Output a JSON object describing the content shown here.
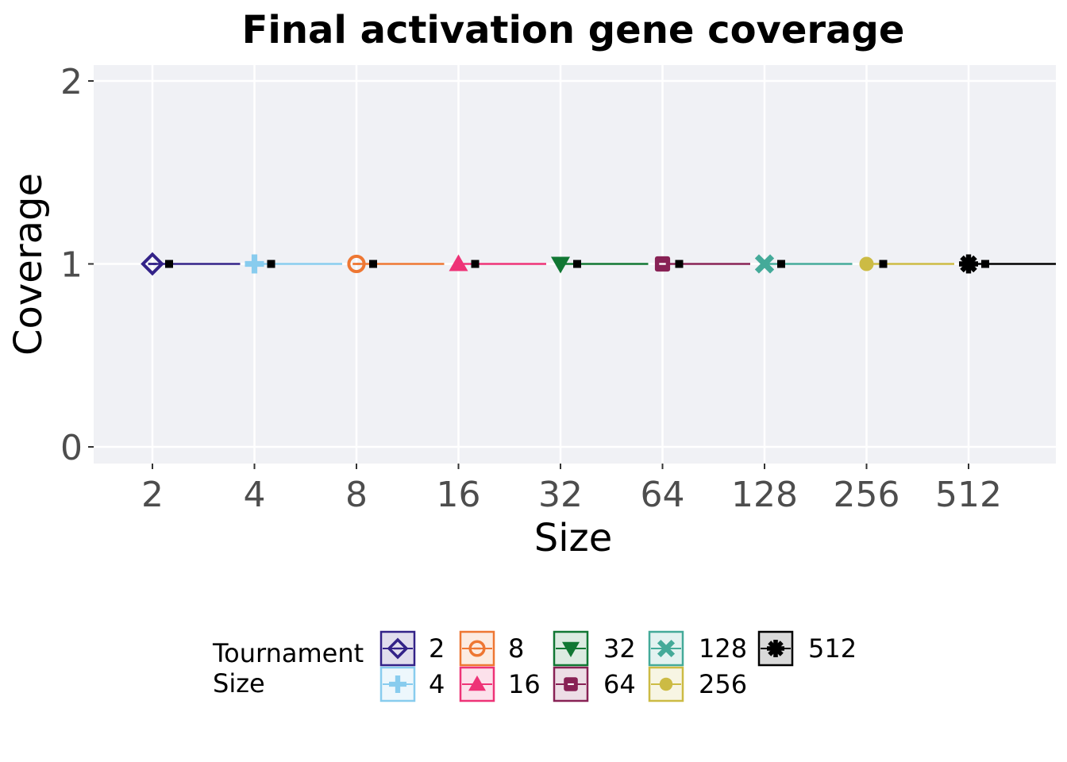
{
  "chart_data": {
    "type": "scatter",
    "title": "Final activation gene coverage",
    "xlabel": "Size",
    "ylabel": "Coverage",
    "categories": [
      "2",
      "4",
      "8",
      "16",
      "32",
      "64",
      "128",
      "256",
      "512"
    ],
    "y_ticks": [
      "0",
      "1",
      "2"
    ],
    "ylim": [
      0,
      2
    ],
    "grid": true,
    "legend": {
      "title_lines": [
        "Tournament",
        "Size"
      ],
      "placement": "bottom"
    },
    "series": [
      {
        "name": "2",
        "color": "#332288",
        "shape": "diamond-open",
        "values": [
          1
        ]
      },
      {
        "name": "4",
        "color": "#88CCEE",
        "shape": "plus",
        "values": [
          1
        ]
      },
      {
        "name": "8",
        "color": "#EE7733",
        "shape": "circle-open",
        "values": [
          1
        ]
      },
      {
        "name": "16",
        "color": "#EE3377",
        "shape": "triangle-up",
        "values": [
          1
        ]
      },
      {
        "name": "32",
        "color": "#117733",
        "shape": "triangle-down",
        "values": [
          1
        ]
      },
      {
        "name": "64",
        "color": "#882255",
        "shape": "square-open",
        "values": [
          1
        ]
      },
      {
        "name": "128",
        "color": "#44AA99",
        "shape": "cross",
        "values": [
          1
        ]
      },
      {
        "name": "256",
        "color": "#CCBB44",
        "shape": "circle",
        "values": [
          1
        ]
      },
      {
        "name": "512",
        "color": "#000000",
        "shape": "asterisk",
        "values": [
          1
        ]
      }
    ]
  }
}
